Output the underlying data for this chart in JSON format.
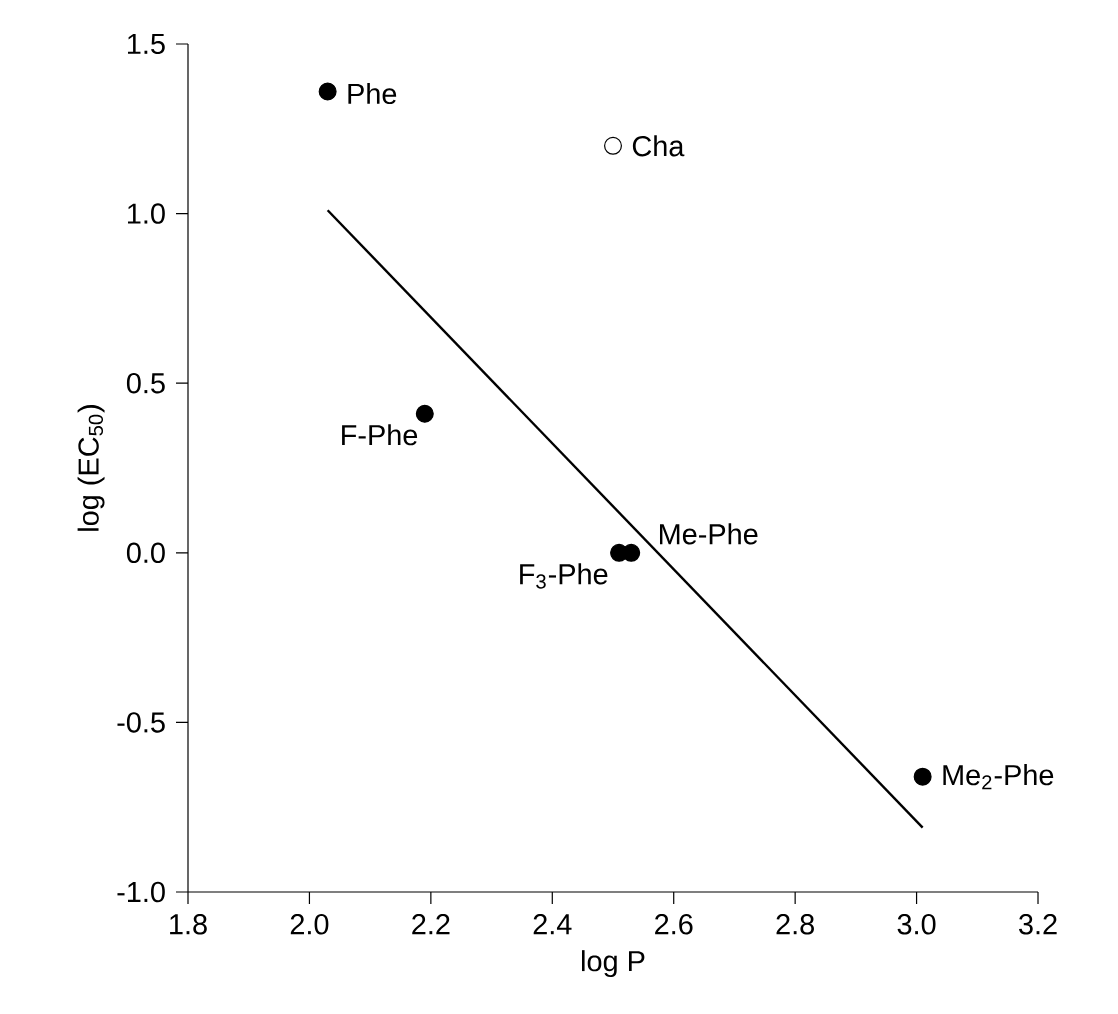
{
  "chart_data": {
    "type": "scatter",
    "xlabel": "log P",
    "ylabel": "log (EC$_{50}$)",
    "xlim": [
      1.8,
      3.2
    ],
    "ylim": [
      -1.0,
      1.5
    ],
    "xticks": [
      {
        "value": 1.8,
        "label": "1.8"
      },
      {
        "value": 2.0,
        "label": "2.0"
      },
      {
        "value": 2.2,
        "label": "2.2"
      },
      {
        "value": 2.4,
        "label": "2.4"
      },
      {
        "value": 2.6,
        "label": "2.6"
      },
      {
        "value": 2.8,
        "label": "2.8"
      },
      {
        "value": 3.0,
        "label": "3.0"
      },
      {
        "value": 3.2,
        "label": "3.2"
      }
    ],
    "yticks": [
      {
        "value": -1.0,
        "label": "-1.0"
      },
      {
        "value": -0.5,
        "label": "-0.5"
      },
      {
        "value": 0.0,
        "label": "0.0"
      },
      {
        "value": 0.5,
        "label": "0.5"
      },
      {
        "value": 1.0,
        "label": "1.0"
      },
      {
        "value": 1.5,
        "label": "1.5"
      }
    ],
    "grid": false,
    "marker": "circle",
    "series": [
      {
        "color": "#000000",
        "x": [
          2.03,
          2.19,
          2.51,
          2.53,
          3.01
        ],
        "values": [
          1.36,
          0.41,
          0.0,
          0.0,
          -0.66
        ]
      },
      {
        "color": "#ffffff",
        "x": [
          2.5
        ],
        "values": [
          1.2
        ]
      },
      {
        "type": "line",
        "color": "#000000",
        "marker": "none",
        "line_style": "solid",
        "x": [
          2.03,
          3.01
        ],
        "values": [
          1.01,
          -0.81
        ]
      }
    ],
    "annotations": [
      {
        "text": "Phe",
        "x": 2.03,
        "y": 1.36
      },
      {
        "text": "Cha",
        "x": 2.5,
        "y": 1.2
      },
      {
        "text": "F-Phe",
        "x": 2.19,
        "y": 0.41
      },
      {
        "text": "F$_{3}$-Phe",
        "x": 2.51,
        "y": 0.0
      },
      {
        "text": "Me-Phe",
        "x": 2.53,
        "y": 0.0
      },
      {
        "text": "Me$_{2}$-Phe",
        "x": 3.01,
        "y": -0.66
      }
    ]
  }
}
